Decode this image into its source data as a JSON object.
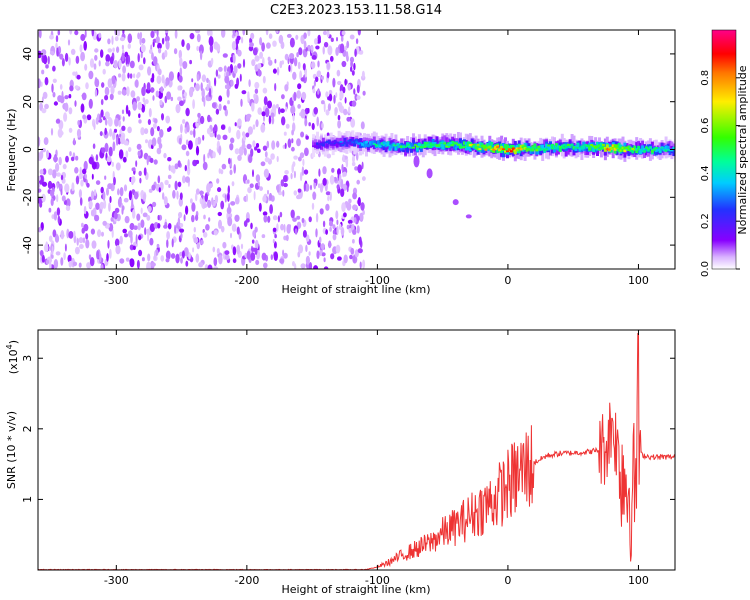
{
  "title": "C2E3.2023.153.11.58.G14",
  "chart_data": [
    {
      "type": "heatmap",
      "xlabel": "Height of straight line (km)",
      "ylabel": "Frequency (Hz)",
      "xlim": [
        -360,
        128
      ],
      "ylim": [
        -50,
        50
      ],
      "xticks": [
        -300,
        -200,
        -100,
        0,
        100
      ],
      "yticks": [
        -40,
        -20,
        0,
        20,
        40
      ],
      "noise_region": [
        -360,
        -110
      ],
      "signal_band": {
        "x": [
          -150,
          -120,
          -100,
          -80,
          -60,
          -40,
          -20,
          0,
          20,
          40,
          60,
          80,
          90,
          100,
          128
        ],
        "center_freq": [
          2,
          3,
          2,
          1,
          2,
          2,
          1,
          0,
          0.5,
          1,
          1,
          1,
          0,
          0,
          0
        ],
        "amplitude": [
          0.25,
          0.35,
          0.45,
          0.5,
          0.55,
          0.55,
          0.7,
          0.85,
          0.55,
          0.55,
          0.55,
          0.8,
          0.6,
          0.55,
          0.4
        ]
      },
      "colorbar": {
        "label": "Normalized spectral amplitude",
        "ticks": [
          0.0,
          0.2,
          0.4,
          0.6,
          0.8
        ],
        "range": [
          0,
          1
        ],
        "colors": [
          "#ffffff",
          "#cc99ff",
          "#8800ff",
          "#2233ff",
          "#00ccff",
          "#00ff66",
          "#55ff00",
          "#ffee00",
          "#ff8800",
          "#ff0000",
          "#ff0099"
        ]
      }
    },
    {
      "type": "line",
      "xlabel": "Height of straight line (km)",
      "ylabel": "SNR (10 * v/v)",
      "multiplier": "(x10^4)",
      "xlim": [
        -360,
        128
      ],
      "ylim": [
        0,
        3.4
      ],
      "xticks": [
        -300,
        -200,
        -100,
        0,
        100
      ],
      "yticks": [
        1,
        2,
        3
      ],
      "color": "#ee3333",
      "series": [
        {
          "x": [
            -360,
            -110,
            -100,
            -90,
            -80,
            -70,
            -60,
            -50,
            -40,
            -30,
            -20,
            -10,
            0,
            10,
            20,
            30,
            40,
            50,
            60,
            70,
            75,
            80,
            85,
            90,
            95,
            100,
            105,
            110,
            128
          ],
          "y": [
            0.005,
            0.005,
            0.04,
            0.12,
            0.22,
            0.3,
            0.38,
            0.52,
            0.62,
            0.75,
            0.88,
            1.0,
            1.2,
            1.38,
            1.52,
            1.62,
            1.65,
            1.66,
            1.67,
            1.7,
            1.75,
            2.1,
            1.6,
            1.3,
            1.0,
            1.65,
            1.62,
            1.6,
            1.6
          ]
        }
      ]
    }
  ],
  "top_axis_text": {
    "xlabel": "Height of straight line (km)",
    "ylabel": "Frequency (Hz)",
    "xticks": [
      "-300",
      "-200",
      "-100",
      "0",
      "100"
    ],
    "yticks": [
      "40",
      "20",
      "0",
      "-20",
      "-40"
    ],
    "cb_label": "Normalized spectral amplitude",
    "cb_ticks": [
      "0.0",
      "0.2",
      "0.4",
      "0.6",
      "0.8"
    ]
  },
  "bottom_axis_text": {
    "xlabel": "Height of straight line (km)",
    "ylabel": "SNR (10 * v/v)",
    "multiplier": "(x10",
    "multiplier_exp": "4",
    "multiplier_close": ")",
    "xticks": [
      "-300",
      "-200",
      "-100",
      "0",
      "100"
    ],
    "yticks": [
      "1",
      "2",
      "3"
    ]
  }
}
